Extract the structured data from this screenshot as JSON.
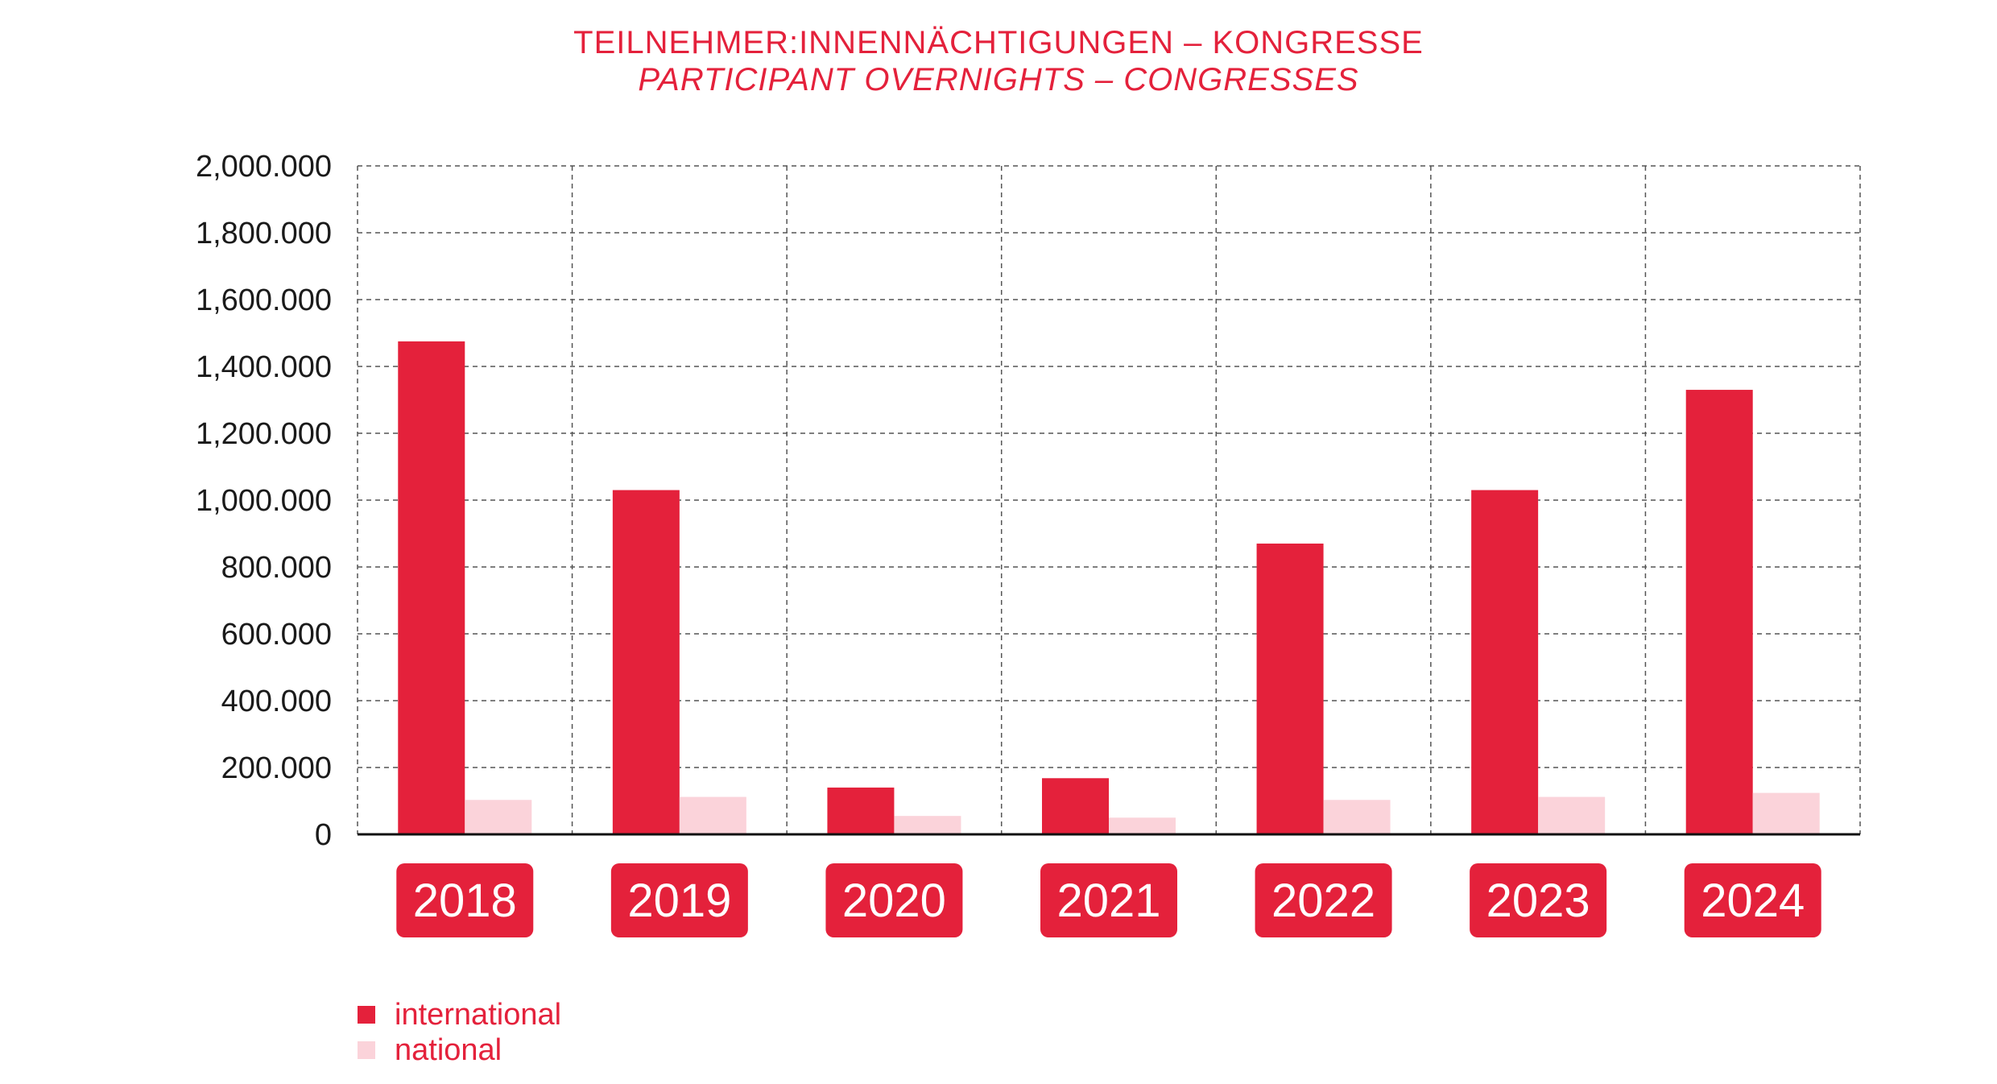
{
  "colors": {
    "accent": "#e4213b",
    "international": "#e4213b",
    "national": "#fbd3da",
    "text": "#1a1a1a",
    "grid": "#555555"
  },
  "chart_data": {
    "type": "bar",
    "title": "TEILNEHMER:INNENNÄCHTIGUNGEN – KONGRESSE",
    "subtitle": "PARTICIPANT OVERNIGHTS – CONGRESSES",
    "categories": [
      "2018",
      "2019",
      "2020",
      "2021",
      "2022",
      "2023",
      "2024"
    ],
    "series": [
      {
        "name": "international",
        "values": [
          1475000,
          1030000,
          140000,
          168000,
          870000,
          1030000,
          1330000
        ]
      },
      {
        "name": "national",
        "values": [
          103000,
          112000,
          55000,
          50000,
          103000,
          112000,
          124000
        ]
      }
    ],
    "ylim": [
      0,
      2000000
    ],
    "yticks": [
      0,
      200000,
      400000,
      600000,
      800000,
      1000000,
      1200000,
      1400000,
      1600000,
      1800000,
      2000000
    ],
    "ytick_labels": [
      "0",
      "200.000",
      "400.000",
      "600.000",
      "800.000",
      "1,000.000",
      "1,200.000",
      "1,400.000",
      "1,600.000",
      "1,800.000",
      "2,000.000"
    ],
    "grid": true,
    "legend_position": "bottom-left"
  }
}
